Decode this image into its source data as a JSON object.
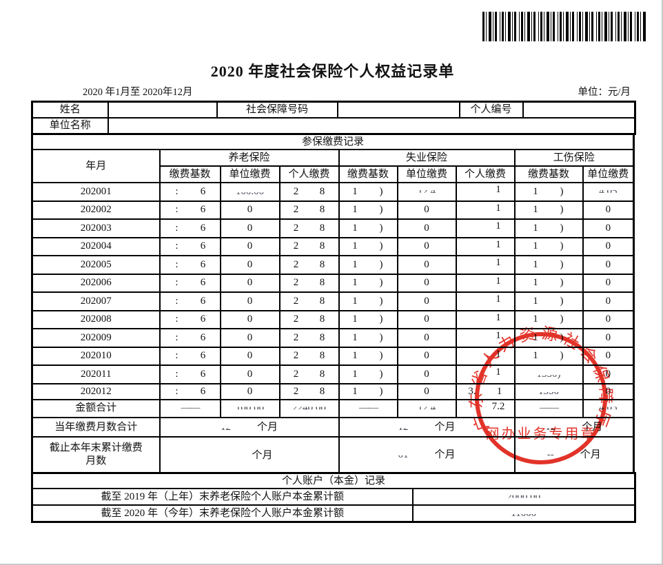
{
  "page": {
    "title": "2020 年度社会保险个人权益记录单",
    "date_range": "2020 年1月至 2020年12月",
    "unit_label": "单位：元/月"
  },
  "icons": {
    "barcode": "barcode"
  },
  "info": {
    "name_label": "姓名",
    "name_value": "",
    "ssn_label": "社会保障号码",
    "ssn_value": "",
    "personal_id_label": "个人编号",
    "personal_id_value": "",
    "employer_label": "单位名称",
    "employer_value": ""
  },
  "contrib": {
    "title": "参保缴费记录",
    "month_col": "年月",
    "groups": [
      {
        "label": "养老保险"
      },
      {
        "label": "失业保险"
      },
      {
        "label": "工伤保险"
      }
    ],
    "sub_headers": [
      "缴费基数",
      "单位缴费",
      "个人缴费",
      "缴费基数",
      "单位缴费",
      "个人缴费",
      "缴费基数",
      "单位缴费"
    ],
    "rows": [
      {
        "month": "202001",
        "cells": [
          {
            "t": "frag",
            "l": ":",
            "r": "6"
          },
          {
            "t": "slb",
            "v": "100.00"
          },
          {
            "t": "frag",
            "l": "2",
            "r": "8"
          },
          {
            "t": "frag",
            "l": "1",
            "r": ")"
          },
          {
            "t": "slm",
            "v": "12.4"
          },
          {
            "t": "frag",
            "l": "",
            "r": "1"
          },
          {
            "t": "frag",
            "l": "1",
            "r": ")"
          },
          {
            "t": "slm",
            "v": "4.05"
          }
        ]
      },
      {
        "month": "202002",
        "cells": [
          {
            "t": "frag",
            "l": ":",
            "r": "6"
          },
          {
            "t": "plain",
            "v": "0"
          },
          {
            "t": "frag",
            "l": "2",
            "r": "8"
          },
          {
            "t": "frag",
            "l": "1",
            "r": ")"
          },
          {
            "t": "plain",
            "v": "0"
          },
          {
            "t": "frag",
            "l": "",
            "r": "1"
          },
          {
            "t": "frag",
            "l": "1",
            "r": ")"
          },
          {
            "t": "plain",
            "v": "0"
          }
        ]
      },
      {
        "month": "202003",
        "cells": [
          {
            "t": "frag",
            "l": ":",
            "r": "6"
          },
          {
            "t": "plain",
            "v": "0"
          },
          {
            "t": "frag",
            "l": "2",
            "r": "8"
          },
          {
            "t": "frag",
            "l": "1",
            "r": ")"
          },
          {
            "t": "plain",
            "v": "0"
          },
          {
            "t": "frag",
            "l": "",
            "r": "1"
          },
          {
            "t": "frag",
            "l": "1",
            "r": ")"
          },
          {
            "t": "plain",
            "v": "0"
          }
        ]
      },
      {
        "month": "202004",
        "cells": [
          {
            "t": "frag",
            "l": ":",
            "r": "6"
          },
          {
            "t": "plain",
            "v": "0"
          },
          {
            "t": "frag",
            "l": "2",
            "r": "8"
          },
          {
            "t": "frag",
            "l": "1",
            "r": ")"
          },
          {
            "t": "plain",
            "v": "0"
          },
          {
            "t": "frag",
            "l": "",
            "r": "1"
          },
          {
            "t": "frag",
            "l": "1",
            "r": ")"
          },
          {
            "t": "plain",
            "v": "0"
          }
        ]
      },
      {
        "month": "202005",
        "cells": [
          {
            "t": "frag",
            "l": ":",
            "r": "6"
          },
          {
            "t": "plain",
            "v": "0"
          },
          {
            "t": "frag",
            "l": "2",
            "r": "8"
          },
          {
            "t": "frag",
            "l": "1",
            "r": ")"
          },
          {
            "t": "plain",
            "v": "0"
          },
          {
            "t": "frag",
            "l": "",
            "r": "1"
          },
          {
            "t": "frag",
            "l": "1",
            "r": ")"
          },
          {
            "t": "plain",
            "v": "0"
          }
        ]
      },
      {
        "month": "202006",
        "cells": [
          {
            "t": "frag",
            "l": ":",
            "r": "6"
          },
          {
            "t": "plain",
            "v": "0"
          },
          {
            "t": "frag",
            "l": "2",
            "r": "8"
          },
          {
            "t": "frag",
            "l": "1",
            "r": ")"
          },
          {
            "t": "plain",
            "v": "0"
          },
          {
            "t": "frag",
            "l": "",
            "r": "1"
          },
          {
            "t": "frag",
            "l": "1",
            "r": ")"
          },
          {
            "t": "plain",
            "v": "0"
          }
        ]
      },
      {
        "month": "202007",
        "cells": [
          {
            "t": "frag",
            "l": ":",
            "r": "6"
          },
          {
            "t": "plain",
            "v": "0"
          },
          {
            "t": "frag",
            "l": "2",
            "r": "8"
          },
          {
            "t": "frag",
            "l": "1",
            "r": ")"
          },
          {
            "t": "plain",
            "v": "0"
          },
          {
            "t": "frag",
            "l": "",
            "r": "1"
          },
          {
            "t": "frag",
            "l": "1",
            "r": ")"
          },
          {
            "t": "plain",
            "v": "0"
          }
        ]
      },
      {
        "month": "202008",
        "cells": [
          {
            "t": "frag",
            "l": ":",
            "r": "6"
          },
          {
            "t": "plain",
            "v": "0"
          },
          {
            "t": "frag",
            "l": "2",
            "r": "8"
          },
          {
            "t": "frag",
            "l": "1",
            "r": ")"
          },
          {
            "t": "plain",
            "v": "0"
          },
          {
            "t": "frag",
            "l": "",
            "r": "1"
          },
          {
            "t": "frag",
            "l": "1",
            "r": ")"
          },
          {
            "t": "plain",
            "v": "0"
          }
        ]
      },
      {
        "month": "202009",
        "cells": [
          {
            "t": "frag",
            "l": ":",
            "r": "6"
          },
          {
            "t": "plain",
            "v": "0"
          },
          {
            "t": "frag",
            "l": "2",
            "r": "8"
          },
          {
            "t": "frag",
            "l": "1",
            "r": ")"
          },
          {
            "t": "plain",
            "v": "0"
          },
          {
            "t": "frag",
            "l": "",
            "r": "1"
          },
          {
            "t": "frag",
            "l": "1",
            "r": ")"
          },
          {
            "t": "plain",
            "v": "0"
          }
        ]
      },
      {
        "month": "202010",
        "cells": [
          {
            "t": "frag",
            "l": ":",
            "r": "6"
          },
          {
            "t": "plain",
            "v": "0"
          },
          {
            "t": "frag",
            "l": "2",
            "r": "8"
          },
          {
            "t": "frag",
            "l": "1",
            "r": ")"
          },
          {
            "t": "plain",
            "v": "0"
          },
          {
            "t": "frag",
            "l": "",
            "r": "1"
          },
          {
            "t": "frag",
            "l": "1",
            "r": ")"
          },
          {
            "t": "plain",
            "v": "0"
          }
        ]
      },
      {
        "month": "202011",
        "cells": [
          {
            "t": "frag",
            "l": ":",
            "r": "6"
          },
          {
            "t": "plain",
            "v": "0"
          },
          {
            "t": "frag",
            "l": "2",
            "r": "8"
          },
          {
            "t": "frag",
            "l": "1",
            "r": ")"
          },
          {
            "t": "plain",
            "v": "0"
          },
          {
            "t": "frag",
            "l": "",
            "r": "1"
          },
          {
            "t": "slb",
            "v": "1550)"
          },
          {
            "t": "plain",
            "v": "0"
          }
        ]
      },
      {
        "month": "202012",
        "cells": [
          {
            "t": "frag",
            "l": ":",
            "r": "6"
          },
          {
            "t": "plain",
            "v": "0"
          },
          {
            "t": "frag",
            "l": "2",
            "r": "8"
          },
          {
            "t": "frag",
            "l": "1",
            "r": ")"
          },
          {
            "t": "plain",
            "v": "0"
          },
          {
            "t": "frag",
            "l": "3.",
            "r": "1"
          },
          {
            "t": "slb",
            "v": "1550"
          },
          {
            "t": "plain",
            "v": "0"
          }
        ]
      }
    ],
    "total_row": {
      "label": "金额合计",
      "cells": [
        {
          "t": "dash"
        },
        {
          "t": "slm",
          "v": "100.00"
        },
        {
          "t": "slm",
          "v": "2240.00"
        },
        {
          "t": "dash"
        },
        {
          "t": "slm",
          "v": "12.4"
        },
        {
          "t": "frag",
          "l": "",
          "r": "7.2"
        },
        {
          "t": "dash"
        },
        {
          "t": "slm",
          "v": "4.05"
        }
      ]
    },
    "months_unit": "个月",
    "months_row": {
      "label": "当年缴费月数合计",
      "values": [
        {
          "t": "slb",
          "v": "12"
        },
        {
          "t": "slb",
          "v": "12"
        },
        {
          "t": "slb",
          "v": "12"
        }
      ]
    },
    "cum_row": {
      "label_line1": "截止本年末累计缴费",
      "label_line2": "月数",
      "values": [
        {
          "t": "plain",
          "v": ""
        },
        {
          "t": "slb",
          "v": "61"
        },
        {
          "t": "gray",
          "v": "--"
        }
      ]
    }
  },
  "account": {
    "title": "个人账户（本金）记录",
    "rows": [
      {
        "label": "截至 2019 年（上年）末养老保险个人账户本金累计额",
        "value": {
          "t": "slm",
          "v": "2000.00"
        }
      },
      {
        "label": "截至 2020 年（今年）末养老保险个人账户本金累计额",
        "value": {
          "t": "slb",
          "v": "11000"
        }
      }
    ]
  },
  "stamp": {
    "arc_text": "广东省人力资源社会保障厅",
    "bottom_text": "网办业务专用章",
    "color": "#e02318"
  }
}
